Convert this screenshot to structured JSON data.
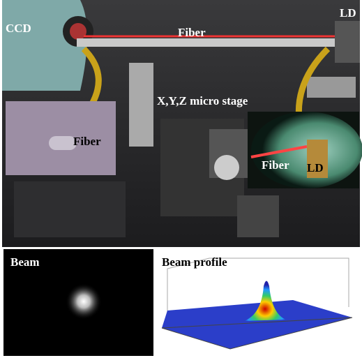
{
  "photo": {
    "labels": {
      "ccd": "CCD",
      "fiber_top": "Fiber",
      "ld_top": "LD",
      "stage": "X,Y,Z micro stage"
    },
    "left_inset": {
      "label": "Fiber"
    },
    "right_inset": {
      "fiber": "Fiber",
      "ld": "LD"
    }
  },
  "bottom": {
    "beam": {
      "title": "Beam"
    },
    "profile": {
      "title": "Beam profile"
    }
  }
}
